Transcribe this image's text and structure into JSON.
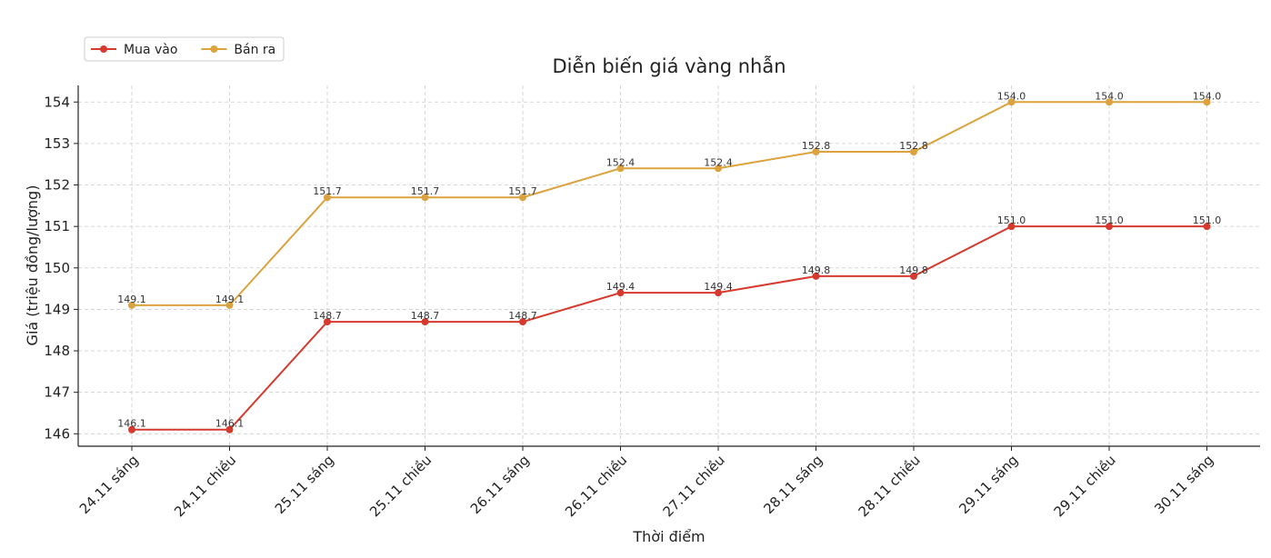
{
  "chart_data": {
    "type": "line",
    "title": "Diễn biến giá vàng nhẫn",
    "x_label": "Thời điểm",
    "y_label": "Giá (triệu đồng/lượng)",
    "categories": [
      "24.11 sáng",
      "24.11 chiều",
      "25.11 sáng",
      "25.11 chiều",
      "26.11 sáng",
      "26.11 chiều",
      "27.11 chiều",
      "28.11 sáng",
      "28.11 chiều",
      "29.11 sáng",
      "29.11 chiều",
      "30.11 sáng"
    ],
    "series": [
      {
        "name": "Mua vào",
        "color": "#d63a2f",
        "values": [
          146.1,
          146.1,
          148.7,
          148.7,
          148.7,
          149.4,
          149.4,
          149.8,
          149.8,
          151,
          151,
          151
        ],
        "value_labels": [
          "146.1",
          "146.1",
          "148.7",
          "148.7",
          "148.7",
          "149.4",
          "149.4",
          "149.8",
          "149.8",
          "151.0",
          "151.0",
          "151.0"
        ]
      },
      {
        "name": "Bán ra",
        "color": "#dba23d",
        "values": [
          149.1,
          149.1,
          151.7,
          151.7,
          151.7,
          152.4,
          152.4,
          152.8,
          152.8,
          154,
          154,
          154
        ],
        "value_labels": [
          "149.1",
          "149.1",
          "151.7",
          "151.7",
          "151.7",
          "152.4",
          "152.4",
          "152.8",
          "152.8",
          "154.0",
          "154.0",
          "154.0"
        ]
      }
    ],
    "ylim": [
      145.7,
      154.4
    ],
    "yticks": [
      146,
      147,
      148,
      149,
      150,
      151,
      152,
      153,
      154
    ],
    "grid": true,
    "legend": "upper-left"
  }
}
